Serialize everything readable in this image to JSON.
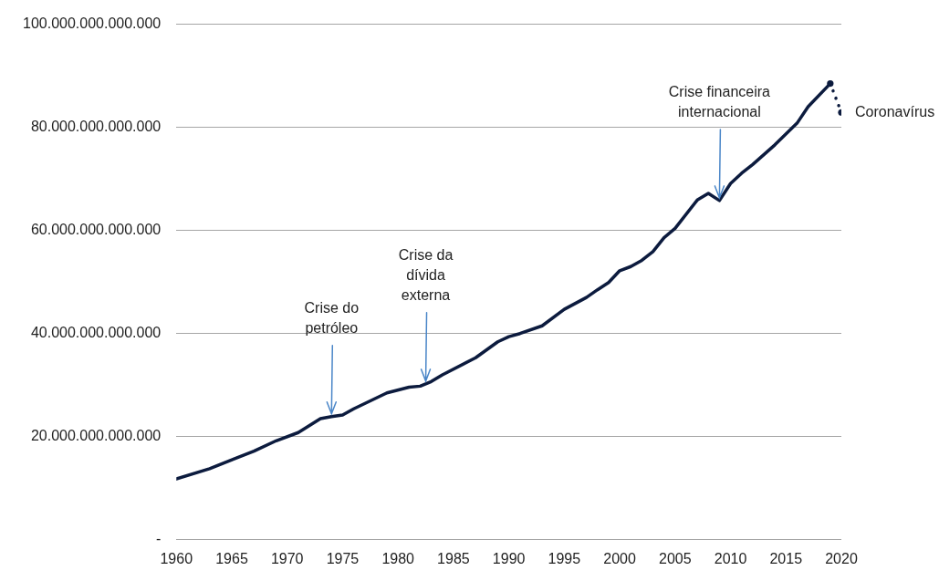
{
  "chart_data": {
    "type": "line",
    "marker": "none",
    "line_style": "solid",
    "grid": "y",
    "legend": false,
    "xlim": [
      1960,
      2020
    ],
    "xticks": [
      1960,
      1965,
      1970,
      1975,
      1980,
      1985,
      1990,
      1995,
      2000,
      2005,
      2010,
      2015,
      2020
    ],
    "ylim": [
      0,
      100000000000000
    ],
    "yticks": [
      {
        "value": 0,
        "label": "-"
      },
      {
        "value": 20000000000000,
        "label": "20.000.000.000.000"
      },
      {
        "value": 40000000000000,
        "label": "40.000.000.000.000"
      },
      {
        "value": 60000000000000,
        "label": "60.000.000.000.000"
      },
      {
        "value": 80000000000000,
        "label": "80.000.000.000.000"
      },
      {
        "value": 100000000000000,
        "label": "100.000.000.000.000"
      }
    ],
    "series": [
      {
        "color": "#0c1b3e",
        "x": [
          1960,
          1963,
          1967,
          1969,
          1971,
          1973,
          1974,
          1975,
          1976,
          1979,
          1981,
          1982,
          1983,
          1984,
          1987,
          1989,
          1990,
          1991,
          1993,
          1995,
          1997,
          1998,
          1999,
          2000,
          2001,
          2002,
          2003,
          2004,
          2005,
          2007,
          2008,
          2009,
          2010,
          2011,
          2012,
          2014,
          2016,
          2017,
          2019
        ],
        "values": [
          11800000000000,
          13800000000000,
          17200000000000,
          19200000000000,
          20800000000000,
          23500000000000,
          23900000000000,
          24200000000000,
          25400000000000,
          28500000000000,
          29600000000000,
          29800000000000,
          30700000000000,
          32000000000000,
          35300000000000,
          38400000000000,
          39400000000000,
          40000000000000,
          41500000000000,
          44700000000000,
          47000000000000,
          48500000000000,
          49900000000000,
          52200000000000,
          53000000000000,
          54200000000000,
          55900000000000,
          58600000000000,
          60400000000000,
          65900000000000,
          67200000000000,
          65800000000000,
          69100000000000,
          71100000000000,
          72800000000000,
          76600000000000,
          80800000000000,
          84000000000000,
          88500000000000
        ]
      },
      {
        "name": "Coronavírus",
        "color": "#0c1b3e",
        "line_style": "dotted",
        "marker": "circle",
        "x": [
          2019,
          2020
        ],
        "values": [
          88500000000000,
          82900000000000
        ]
      }
    ],
    "annotations": [
      {
        "text": "Crise do\npetróleo",
        "x": 1974,
        "y": 23900000000000
      },
      {
        "text": "Crise da\ndívida\nexterna",
        "x": 1982.5,
        "y": 30250000000000
      },
      {
        "text": "Crise financeira\ninternacional",
        "x": 2009,
        "y": 65800000000000
      }
    ]
  }
}
